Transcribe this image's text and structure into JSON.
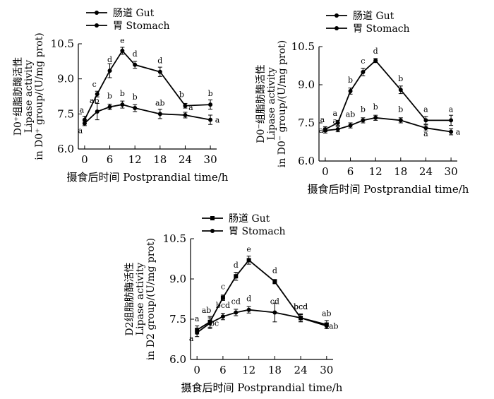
{
  "legend": {
    "gut": "肠道  Gut",
    "stomach": "胃  Stomach"
  },
  "chart_data": [
    {
      "type": "line",
      "x": [
        0,
        3,
        6,
        9,
        12,
        18,
        24,
        30
      ],
      "xticks": [
        "0",
        "6",
        "12",
        "18",
        "24",
        "30"
      ],
      "yticks": [
        "6.0",
        "7.5",
        "9.0",
        "10.5"
      ],
      "ylim": [
        6.0,
        10.5
      ],
      "xlim": [
        -1.5,
        31.5
      ],
      "xlabel": "摄食后时间  Postprandial time/h",
      "ylabel_lines": [
        "D0⁺组脂肪酶活性",
        "Lipase activity",
        "in D0⁺ group/(U/mg prot)"
      ],
      "series": [
        {
          "name": "肠道  Gut",
          "key": "gut",
          "marker": "dot",
          "values": [
            7.25,
            8.35,
            9.35,
            10.2,
            9.6,
            9.3,
            7.85,
            7.9
          ],
          "errors": [
            0.15,
            0.12,
            0.3,
            0.15,
            0.15,
            0.2,
            0.1,
            0.2
          ],
          "letters": [
            "a",
            "c",
            "d",
            "e",
            "d",
            "d",
            "b",
            "b"
          ]
        },
        {
          "name": "胃  Stomach",
          "key": "stomach",
          "marker": "dot",
          "values": [
            7.1,
            7.6,
            7.8,
            7.9,
            7.75,
            7.5,
            7.45,
            7.25
          ],
          "errors": [
            0.1,
            0.35,
            0.12,
            0.15,
            0.15,
            0.2,
            0.12,
            0.2
          ],
          "letters": [
            "a",
            "ab",
            "b",
            "b",
            "b",
            "ab",
            "a",
            "a"
          ]
        }
      ]
    },
    {
      "type": "line",
      "x": [
        0,
        3,
        6,
        9,
        12,
        18,
        24,
        30
      ],
      "xticks": [
        "0",
        "6",
        "12",
        "18",
        "24",
        "30"
      ],
      "yticks": [
        "6.0",
        "7.5",
        "9.0",
        "10.5"
      ],
      "ylim": [
        6.0,
        10.5
      ],
      "xlim": [
        -1.5,
        31.5
      ],
      "xlabel": "摄食后时间  Postprandial time/h",
      "ylabel_lines": [
        "D0⁻组脂肪酶活性",
        "Lipase activity",
        "in D0⁻ group/(U/mg prot)"
      ],
      "series": [
        {
          "name": "肠道  Gut",
          "key": "gut",
          "marker": "dot",
          "values": [
            7.25,
            7.5,
            8.75,
            9.5,
            9.95,
            8.8,
            7.6,
            7.6
          ],
          "errors": [
            0.1,
            0.1,
            0.12,
            0.15,
            0.08,
            0.15,
            0.15,
            0.2
          ],
          "letters": [
            "a",
            "a",
            "b",
            "c",
            "d",
            "b",
            "a",
            "a"
          ]
        },
        {
          "name": "胃  Stomach",
          "key": "stomach",
          "marker": "dot",
          "values": [
            7.2,
            7.25,
            7.4,
            7.6,
            7.7,
            7.6,
            7.3,
            7.15
          ],
          "errors": [
            0.1,
            0.1,
            0.1,
            0.1,
            0.1,
            0.1,
            0.12,
            0.12
          ],
          "letters": [
            "a",
            "a",
            "ab",
            "b",
            "b",
            "b",
            "a",
            "a"
          ]
        }
      ]
    },
    {
      "type": "line",
      "x": [
        0,
        3,
        6,
        9,
        12,
        18,
        24,
        30
      ],
      "xticks": [
        "0",
        "6",
        "12",
        "18",
        "24",
        "30"
      ],
      "yticks": [
        "6.0",
        "7.5",
        "9.0",
        "10.5"
      ],
      "ylim": [
        6.0,
        10.5
      ],
      "xlim": [
        -1.5,
        31.5
      ],
      "xlabel": "摄食后时间  Postprandial time/h",
      "ylabel_lines": [
        "D2组脂肪酶活性",
        "Lipase activity",
        "in D2 group/(U/mg prot)"
      ],
      "series": [
        {
          "name": "肠道  Gut",
          "key": "gut",
          "marker": "square",
          "values": [
            7.1,
            7.4,
            8.3,
            9.1,
            9.7,
            8.9,
            7.55,
            7.3
          ],
          "errors": [
            0.15,
            0.2,
            0.1,
            0.15,
            0.15,
            0.08,
            0.15,
            0.15
          ],
          "letters": [
            "a",
            "ab",
            "c",
            "d",
            "e",
            "d",
            "bcd",
            "ab"
          ]
        },
        {
          "name": "胃  Stomach",
          "key": "stomach",
          "marker": "dot",
          "values": [
            7.0,
            7.35,
            7.6,
            7.75,
            7.85,
            7.75,
            7.55,
            7.25
          ],
          "errors": [
            0.15,
            0.2,
            0.12,
            0.12,
            0.12,
            0.35,
            0.12,
            0.1
          ],
          "letters": [
            "a",
            "bc",
            "bcd",
            "cd",
            "d",
            "cd",
            "bcd",
            "ab"
          ]
        }
      ]
    }
  ]
}
